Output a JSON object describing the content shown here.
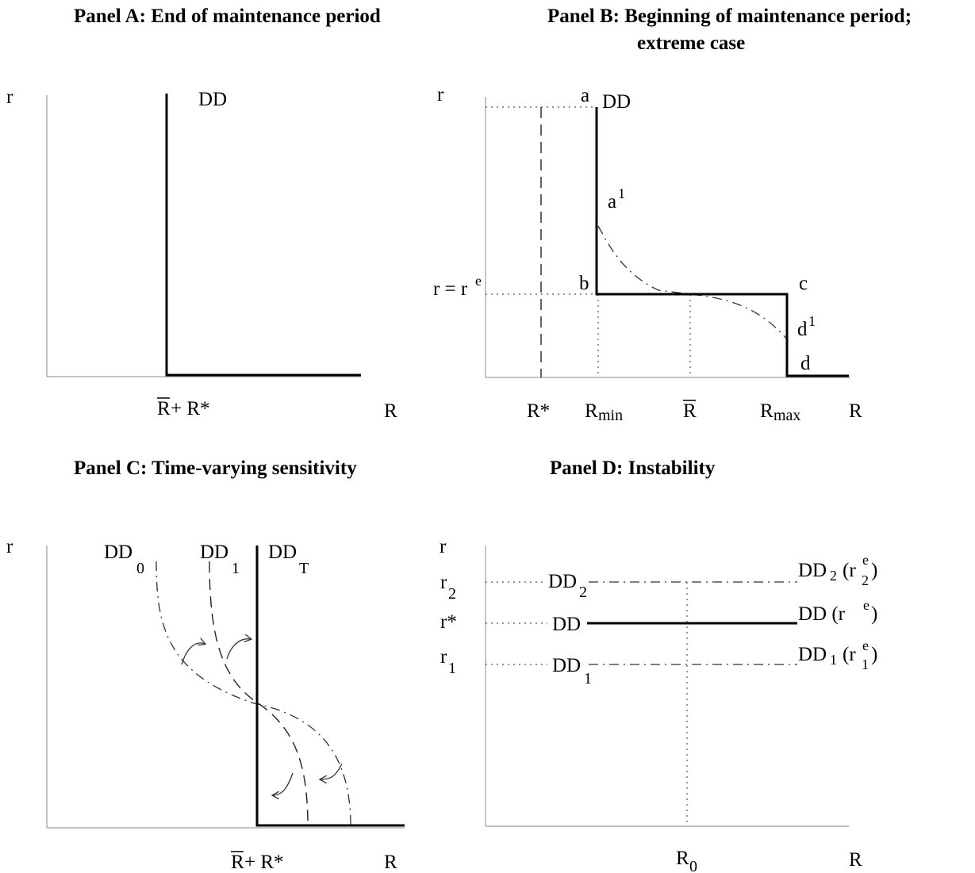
{
  "panel_a": {
    "title": "Panel A:  End of maintenance period",
    "y_label": "r",
    "x_label": "R",
    "curve_label": "DD",
    "tick_R_bar": "R",
    "tick_plus_rstar": "+ R*"
  },
  "panel_b": {
    "title_line1": "Panel B: Beginning of maintenance period;",
    "title_line2": "extreme case",
    "y_label": "r",
    "x_label": "R",
    "curve_label": "DD",
    "rate_r": "r = r",
    "rate_e": "e",
    "point_a": "a",
    "point_a1": "a",
    "point_a1_sup": "1",
    "point_b": "b",
    "point_c": "c",
    "point_d1": "d",
    "point_d1_sup": "1",
    "point_d": "d",
    "tick_rstar": "R*",
    "tick_rmin": "R",
    "tick_rmin_sub": "min",
    "tick_rbar": "R",
    "tick_rmax": "R",
    "tick_rmax_sub": "max"
  },
  "panel_c": {
    "title": "Panel C:  Time-varying sensitivity",
    "y_label": "r",
    "x_label": "R",
    "dd0": "DD",
    "dd0_sub": "0",
    "dd1": "DD",
    "dd1_sub": "1",
    "ddT": "DD",
    "ddT_sub": "T",
    "tick_R_bar": "R",
    "tick_plus_rstar": "+ R*"
  },
  "panel_d": {
    "title": "Panel D: Instability",
    "y_label": "r",
    "x_label": "R",
    "tick_r2": "r",
    "tick_r2_sub": "2",
    "tick_rstar": "r*",
    "tick_r1": "r",
    "tick_r1_sub": "1",
    "dd2_left": "DD",
    "dd2_left_sub": "2",
    "dd_left": "DD",
    "dd1_left": "DD",
    "dd1_left_sub": "1",
    "dd2_right": "DD",
    "dd2_right_sub": "2",
    "dd2_right_paren": "(r",
    "dd2_right_sup": "e",
    "dd2_right_sub2": "2",
    "dd_right": "DD  (r",
    "dd_right_sup": "e",
    "dd1_right": "DD",
    "dd1_right_sub": "1",
    "dd1_right_paren": "(r",
    "dd1_right_sup": "e",
    "dd1_right_sub2": "1",
    "close_paren": ")",
    "tick_R0": "R",
    "tick_R0_sub": "0"
  }
}
